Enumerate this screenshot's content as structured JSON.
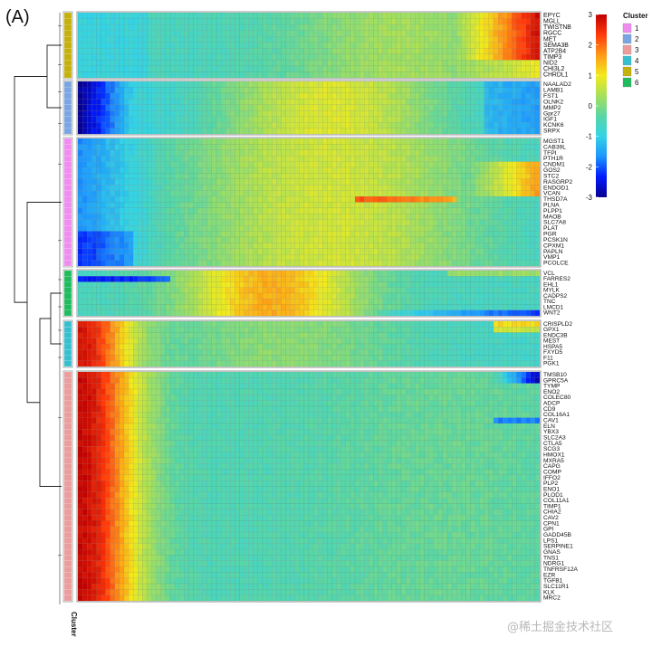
{
  "panel_label": "(A)",
  "watermark": "@稀土掘金技术社区",
  "legend": {
    "color_ticks": [
      "3",
      "2",
      "1",
      "0",
      "-1",
      "-2",
      "-3"
    ],
    "cluster_title": "Cluster",
    "cluster_entries": [
      "1",
      "2",
      "3",
      "4",
      "5",
      "6"
    ],
    "cluster_colors": {
      "1": "#f08cf0",
      "2": "#7aa5e2",
      "3": "#ec9c9c",
      "4": "#36c0cf",
      "5": "#c4b10c",
      "6": "#1ebc5c"
    }
  },
  "cluster_axis_label": "Cluster",
  "chart_data": {
    "type": "heatmap",
    "value_range": [
      -3,
      3
    ],
    "n_columns": 100,
    "colormap": [
      "#08008e",
      "#0019ff",
      "#1c95ff",
      "#33d3e6",
      "#58d6a6",
      "#a7e05a",
      "#f2ea1c",
      "#ff9a17",
      "#ff3a0c",
      "#c00000"
    ],
    "blocks": [
      {
        "cluster": "5",
        "genes": [
          "EPYC",
          "MGLL",
          "TWISTNB",
          "RGCC",
          "MET",
          "SEMA3B",
          "ATP2B4",
          "TIMP3",
          "NID2",
          "CHI3L2",
          "CHRDL1"
        ],
        "pattern": "late_up"
      },
      {
        "cluster": "2",
        "genes": [
          "NAALAD2",
          "LAMB1",
          "FST1",
          "OLNK2",
          "MMP2",
          "Gpr27",
          "IGF1",
          "KCNK6",
          "SRPX"
        ],
        "pattern": "early_low_mid_up"
      },
      {
        "cluster": "1",
        "genes": [
          "MGST1",
          "CAB39L",
          "TFPI",
          "PTH1R",
          "CNDM1",
          "GOS2",
          "STC2",
          "RASGRP2",
          "ENDOD1",
          "VCAN",
          "THSD7A",
          "PLNA",
          "PLPP1",
          "MAOB",
          "SLC7A8",
          "PLAT",
          "PGR",
          "PCSK1N",
          "CPXM1",
          "PAPLN",
          "VMP1",
          "PCOLCE"
        ],
        "pattern": "mixed"
      },
      {
        "cluster": "6",
        "genes": [
          "VCL",
          "FARRES2",
          "EHL1",
          "MYLK",
          "CADPS2",
          "TNC",
          "LMCD1",
          "WNT2"
        ],
        "pattern": "mid_up"
      },
      {
        "cluster": "4",
        "genes": [
          "CRISPLD2",
          "GPX1",
          "ENDC3B",
          "MEST",
          "HSPA5",
          "FXYD5",
          "F11",
          "PGK1"
        ],
        "pattern": "early_up"
      },
      {
        "cluster": "3",
        "genes": [
          "TMSB10",
          "GPRC5A",
          "TYMP",
          "ENO2",
          "COLEC80",
          "ADCP",
          "CD9",
          "COL16A1",
          "CAV1",
          "ELN",
          "YBX3",
          "SLC2A3",
          "CTLA5",
          "SCG3",
          "HMOX1",
          "MXRA5",
          "CAPG",
          "COMP",
          "IFFO2",
          "PLP2",
          "ENO1",
          "PLOD1",
          "COL11A1",
          "TIMP1",
          "CHIA2",
          "CAV2",
          "CPN1",
          "GPI",
          "GADD45B",
          "LPS1",
          "SERPINE1",
          "GNAS",
          "TNS1",
          "NDRG1",
          "TNFRSF12A",
          "EZR",
          "TGFB1",
          "SLC11R1",
          "KLK",
          "MRC2"
        ],
        "pattern": "early_strong"
      }
    ]
  }
}
